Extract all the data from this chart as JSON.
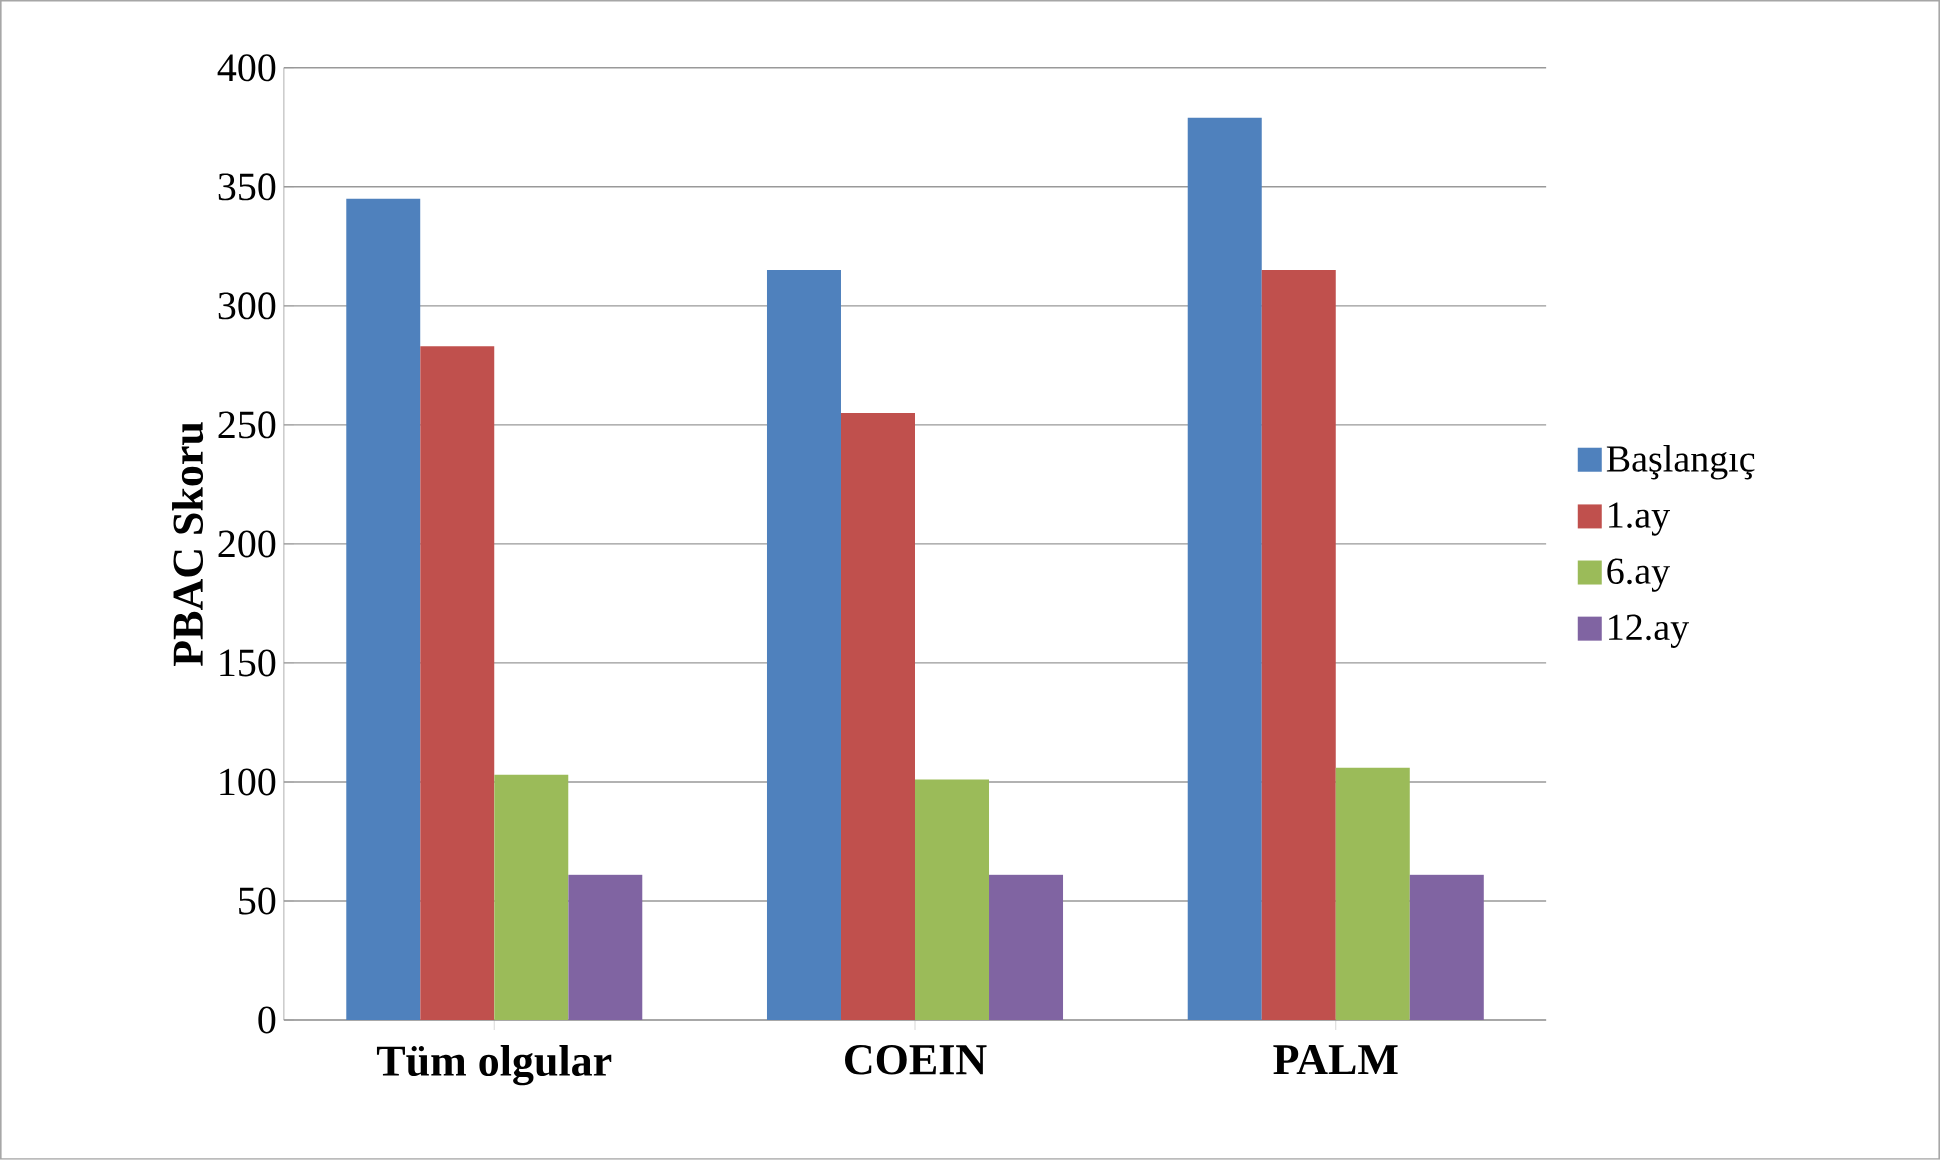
{
  "chart_data": {
    "type": "bar",
    "ylabel": "PBAC Skoru",
    "categories": [
      "Tüm olgular",
      "COEIN",
      "PALM"
    ],
    "series": [
      {
        "name": "Başlangıç",
        "color": "#4f81bd",
        "values": [
          345,
          315,
          379
        ]
      },
      {
        "name": "1.ay",
        "color": "#c0504d",
        "values": [
          283,
          255,
          315
        ]
      },
      {
        "name": "6.ay",
        "color": "#9bbb59",
        "values": [
          103,
          101,
          106
        ]
      },
      {
        "name": "12.ay",
        "color": "#8064a2",
        "values": [
          61,
          61,
          61
        ]
      }
    ],
    "ylim": [
      0,
      400
    ],
    "yticks": [
      0,
      50,
      100,
      150,
      200,
      250,
      300,
      350,
      400
    ],
    "grid": "y",
    "legend": "right"
  }
}
